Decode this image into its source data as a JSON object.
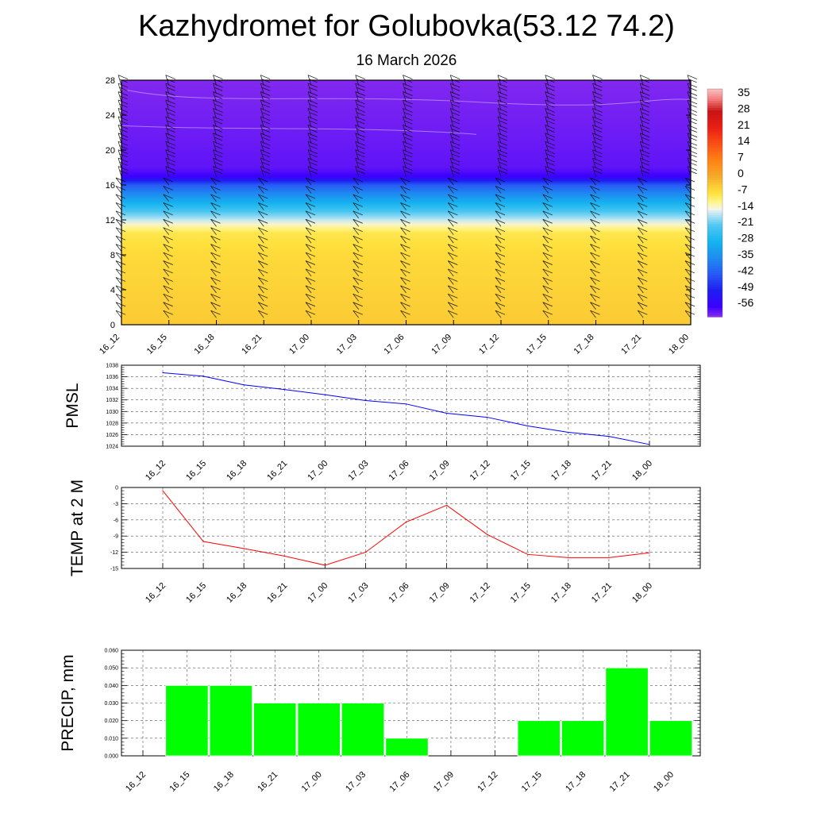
{
  "title": "Kazhydromet for Golubovka(53.12 74.2)",
  "subtitle": "16 March 2026",
  "time_labels": [
    "16_12",
    "16_15",
    "16_18",
    "16_21",
    "17_00",
    "17_03",
    "17_06",
    "17_09",
    "17_12",
    "17_15",
    "17_18",
    "17_21",
    "18_00"
  ],
  "chart_data": [
    {
      "type": "heatmap",
      "name": "",
      "y_ticks": [
        0,
        4,
        8,
        12,
        16,
        20,
        24,
        28
      ],
      "ylim": [
        0,
        28
      ],
      "x": [
        "16_12",
        "16_15",
        "16_18",
        "16_21",
        "17_00",
        "17_03",
        "17_06",
        "17_09",
        "17_12",
        "17_15",
        "17_18",
        "17_21",
        "18_00"
      ],
      "colorbar_labels": [
        "35",
        "28",
        "21",
        "14",
        "7",
        "0",
        "-7",
        "-14",
        "-21",
        "-28",
        "-35",
        "-42",
        "-49",
        "-56"
      ],
      "colorbar_range": [
        -60,
        38
      ],
      "profile": [
        {
          "y": 0,
          "value": -4
        },
        {
          "y": 4,
          "value": -5
        },
        {
          "y": 8,
          "value": -6
        },
        {
          "y": 10.5,
          "value": -8
        },
        {
          "y": 11.5,
          "value": -13
        },
        {
          "y": 13,
          "value": -22
        },
        {
          "y": 14.5,
          "value": -32
        },
        {
          "y": 16,
          "value": -42
        },
        {
          "y": 17,
          "value": -56
        },
        {
          "y": 18,
          "value": -58
        },
        {
          "y": 28,
          "value": -60
        }
      ],
      "wind_barbs": true
    },
    {
      "type": "line",
      "ylabel": "PMSL",
      "x": [
        "16_12",
        "16_15",
        "16_18",
        "16_21",
        "17_00",
        "17_03",
        "17_06",
        "17_09",
        "17_12",
        "17_15",
        "17_18",
        "17_21",
        "18_00"
      ],
      "values": [
        1036.7,
        1036.1,
        1034.6,
        1033.8,
        1032.9,
        1031.9,
        1031.3,
        1029.7,
        1029.0,
        1027.5,
        1026.4,
        1025.7,
        1024.3
      ],
      "ylim": [
        1024,
        1038
      ],
      "y_ticks": [
        1024,
        1026,
        1028,
        1030,
        1032,
        1034,
        1036,
        1038
      ],
      "color": "#0000ff",
      "grid": true
    },
    {
      "type": "line",
      "ylabel": "TEMP at 2 M",
      "x": [
        "16_12",
        "16_15",
        "16_18",
        "16_21",
        "17_00",
        "17_03",
        "17_06",
        "17_09",
        "17_12",
        "17_15",
        "17_18",
        "17_21",
        "18_00"
      ],
      "values": [
        -0.6,
        -10.0,
        -11.3,
        -12.7,
        -14.4,
        -12.0,
        -6.4,
        -3.3,
        -8.7,
        -12.4,
        -13.0,
        -13.0,
        -12.1
      ],
      "ylim": [
        -15,
        0
      ],
      "y_ticks": [
        -15,
        -12,
        -9,
        -6,
        -3,
        0
      ],
      "color": "#ff0000",
      "grid": true
    },
    {
      "type": "bar",
      "ylabel": "PRECIP, mm",
      "categories": [
        "16_12",
        "16_15",
        "16_18",
        "16_21",
        "17_00",
        "17_03",
        "17_06",
        "17_09",
        "17_12",
        "17_15",
        "17_18",
        "17_21",
        "18_00"
      ],
      "values": [
        0,
        0.04,
        0.04,
        0.03,
        0.03,
        0.03,
        0.01,
        0,
        0,
        0.02,
        0.02,
        0.05,
        0.02
      ],
      "ylim": [
        0,
        0.06
      ],
      "y_ticks": [
        "0.000",
        "0.010",
        "0.020",
        "0.030",
        "0.040",
        "0.050",
        "0.060"
      ],
      "color": "#00ff00",
      "grid": true
    }
  ]
}
